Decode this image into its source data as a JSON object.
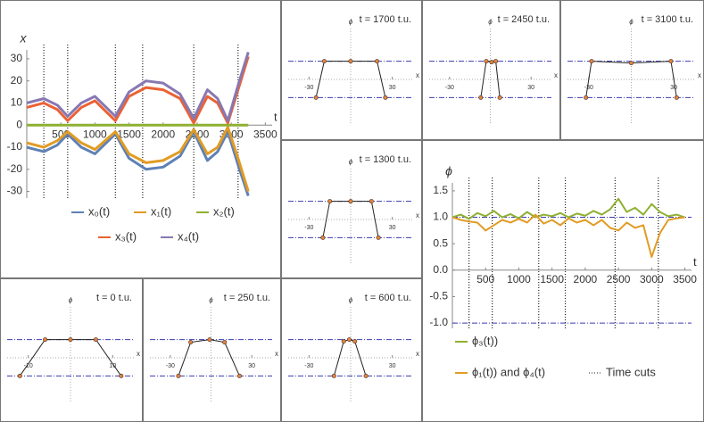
{
  "chart_data": [
    {
      "type": "line",
      "xlabel": "t",
      "ylabel": "x",
      "x": [
        0,
        250,
        450,
        600,
        800,
        1000,
        1300,
        1500,
        1750,
        2000,
        2250,
        2450,
        2650,
        2800,
        2950,
        3100,
        3250
      ],
      "series": [
        {
          "name": "x₀(t)",
          "color": "#5e81b5",
          "values": [
            -10,
            -12,
            -9,
            -4,
            -10,
            -13,
            -4,
            -15,
            -20,
            -19,
            -14,
            -3,
            -16,
            -12,
            -3,
            -18,
            -32
          ]
        },
        {
          "name": "x₁(t)",
          "color": "#e19c24",
          "values": [
            -8,
            -10,
            -7,
            -3,
            -8,
            -11,
            -3,
            -13,
            -17,
            -16,
            -12,
            -2,
            -13,
            -10,
            -1,
            -15,
            -30
          ]
        },
        {
          "name": "x₂(t)",
          "color": "#8fb032",
          "values": [
            0,
            0,
            0,
            0,
            0,
            0,
            0,
            0,
            0,
            0,
            0,
            0,
            0,
            0,
            0,
            0,
            0
          ]
        },
        {
          "name": "x₃(t)",
          "color": "#eb6235",
          "values": [
            8,
            10,
            7,
            2,
            8,
            11,
            2,
            13,
            17,
            16,
            12,
            1,
            13,
            10,
            1,
            16,
            31
          ]
        },
        {
          "name": "x₄(t)",
          "color": "#8778b3",
          "values": [
            10,
            12,
            9,
            4,
            10,
            13,
            4,
            15,
            20,
            19,
            14,
            3,
            16,
            12,
            2,
            18,
            33
          ]
        }
      ],
      "time_cuts": [
        250,
        600,
        1300,
        1700,
        2450,
        3100
      ],
      "xlim": [
        0,
        3600
      ],
      "ylim": [
        -33,
        34
      ],
      "xticks": [
        500,
        1000,
        1500,
        2000,
        2500,
        3000,
        3500
      ],
      "yticks": [
        -30,
        -20,
        -10,
        0,
        10,
        20,
        30
      ]
    },
    {
      "type": "line",
      "xlabel": "t",
      "ylabel": "ϕ",
      "x": [
        0,
        125,
        250,
        375,
        500,
        625,
        750,
        875,
        1000,
        1125,
        1250,
        1375,
        1500,
        1625,
        1750,
        1875,
        2000,
        2125,
        2250,
        2375,
        2500,
        2625,
        2750,
        2875,
        3000,
        3125,
        3250,
        3375,
        3500
      ],
      "series": [
        {
          "name": "ϕ₃(t))",
          "color": "#8fb032",
          "values": [
            1.0,
            1.05,
            0.97,
            1.08,
            1.02,
            1.12,
            1.0,
            1.06,
            0.98,
            1.1,
            1.0,
            1.05,
            1.02,
            1.08,
            1.0,
            1.07,
            1.03,
            1.12,
            1.05,
            1.15,
            1.35,
            1.1,
            1.18,
            1.05,
            1.25,
            1.1,
            1.02,
            1.05,
            1.0
          ]
        },
        {
          "name": "ϕ₁(t)) and ϕ₄(t)",
          "color": "#e19c24",
          "values": [
            1.0,
            0.95,
            0.92,
            0.9,
            0.75,
            0.85,
            0.95,
            0.9,
            0.97,
            0.9,
            1.05,
            0.88,
            0.95,
            0.85,
            0.98,
            0.9,
            0.95,
            0.85,
            0.95,
            0.8,
            0.75,
            0.9,
            0.8,
            0.85,
            0.25,
            0.7,
            0.95,
            0.98,
            1.0
          ]
        }
      ],
      "time_cuts": [
        250,
        600,
        1300,
        1700,
        2450,
        3100
      ],
      "time_cuts_label": "Time cuts",
      "hlines": [
        1,
        -1
      ],
      "xlim": [
        0,
        3600
      ],
      "ylim": [
        -1.1,
        1.65
      ],
      "xticks": [
        500,
        1000,
        1500,
        2000,
        2500,
        3000,
        3500
      ],
      "yticks": [
        {
          "value": -1,
          "label": "-1.0"
        },
        {
          "value": -0.5,
          "label": "-0.5"
        },
        {
          "value": 0,
          "label": "0.0"
        },
        {
          "value": 0.5,
          "label": "0.5"
        },
        {
          "value": 1,
          "label": "1.0"
        },
        {
          "value": 1.5,
          "label": "1.5"
        }
      ]
    },
    {
      "type": "scatter",
      "title": "t = 1700 t.u.",
      "xlabel": "x",
      "ylabel": "ϕ",
      "x": [
        -25,
        -19,
        0,
        19,
        25
      ],
      "values": [
        -1,
        1,
        1,
        1,
        -1
      ],
      "hlines": [
        1,
        -1
      ],
      "xlim": [
        -45,
        45
      ],
      "ylim": [
        -2.4,
        2.4
      ],
      "xticks": [
        -30,
        30
      ]
    },
    {
      "type": "scatter",
      "title": "t = 2450 t.u.",
      "xlabel": "x",
      "ylabel": "ϕ",
      "x": [
        -7,
        -3,
        1,
        4,
        7
      ],
      "values": [
        -1,
        1,
        0.95,
        1,
        -1
      ],
      "hlines": [
        1,
        -1
      ],
      "xlim": [
        -45,
        45
      ],
      "ylim": [
        -2.4,
        2.4
      ],
      "xticks": [
        -30,
        30
      ]
    },
    {
      "type": "scatter",
      "title": "t = 3100 t.u.",
      "xlabel": "x",
      "ylabel": "ϕ",
      "x": [
        -32,
        -28,
        0,
        28,
        32
      ],
      "values": [
        -1,
        1,
        0.9,
        1,
        -1
      ],
      "hlines": [
        1,
        -1
      ],
      "xlim": [
        -45,
        45
      ],
      "ylim": [
        -2.4,
        2.4
      ],
      "xticks": [
        -30,
        30
      ]
    },
    {
      "type": "scatter",
      "title": "t = 1300 t.u.",
      "xlabel": "x",
      "ylabel": "ϕ",
      "x": [
        -20,
        -15,
        0,
        15,
        20
      ],
      "values": [
        -1,
        1,
        1,
        1,
        -1
      ],
      "hlines": [
        1,
        -1
      ],
      "xlim": [
        -45,
        45
      ],
      "ylim": [
        -2.4,
        2.4
      ],
      "xticks": [
        -30,
        30
      ]
    },
    {
      "type": "scatter",
      "title": "t = 0 t.u.",
      "xlabel": "x",
      "ylabel": "ϕ",
      "x": [
        -12,
        -6,
        0,
        6,
        12
      ],
      "values": [
        -1,
        1,
        1,
        1,
        -1
      ],
      "hlines": [
        1,
        -1
      ],
      "xlim": [
        -15,
        15
      ],
      "ylim": [
        -2.4,
        2.4
      ],
      "xticks": [
        -10,
        10
      ]
    },
    {
      "type": "scatter",
      "title": "t = 250 t.u.",
      "xlabel": "x",
      "ylabel": "ϕ",
      "x": [
        -24,
        -15,
        -1,
        10,
        21
      ],
      "values": [
        -1,
        0.85,
        1,
        0.85,
        -1
      ],
      "hlines": [
        1,
        -1
      ],
      "xlim": [
        -45,
        45
      ],
      "ylim": [
        -2.4,
        2.4
      ],
      "xticks": [
        -30,
        30
      ]
    },
    {
      "type": "scatter",
      "title": "t = 600 t.u.",
      "xlabel": "x",
      "ylabel": "ϕ",
      "x": [
        -12,
        -5,
        -1,
        3,
        11
      ],
      "values": [
        -1,
        0.9,
        1,
        0.9,
        -1
      ],
      "hlines": [
        1,
        -1
      ],
      "xlim": [
        -45,
        45
      ],
      "ylim": [
        -2.4,
        2.4
      ],
      "xticks": [
        -30,
        30
      ]
    }
  ]
}
